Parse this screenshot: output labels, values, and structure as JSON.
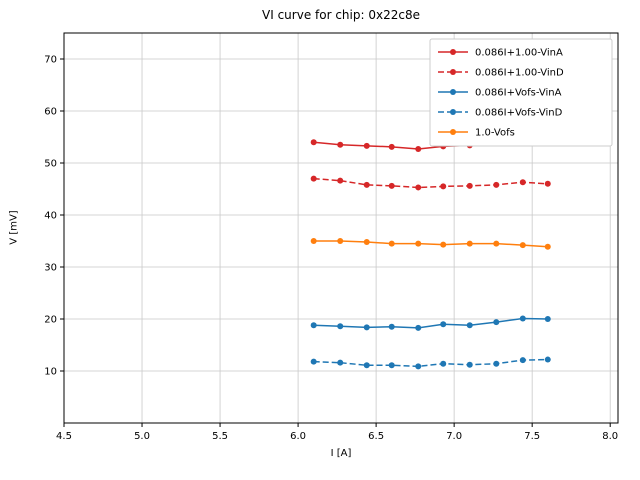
{
  "chart_data": {
    "type": "line",
    "title": "VI curve for chip: 0x22c8e",
    "xlabel": "I [A]",
    "ylabel": "V [mV]",
    "xlim": [
      4.5,
      8.05
    ],
    "ylim": [
      0,
      75
    ],
    "xticks": [
      4.5,
      5.0,
      5.5,
      6.0,
      6.5,
      7.0,
      7.5,
      8.0
    ],
    "yticks": [
      10,
      20,
      30,
      40,
      50,
      60,
      70
    ],
    "grid": true,
    "legend_position": "upper right",
    "x": [
      6.1,
      6.27,
      6.44,
      6.6,
      6.77,
      6.93,
      7.1,
      7.27,
      7.44,
      7.6
    ],
    "series": [
      {
        "name": "0.086I+1.00-VinA",
        "color": "#d62728",
        "style": "solid",
        "values": [
          54.0,
          53.5,
          53.3,
          53.1,
          52.7,
          53.2,
          53.4,
          53.8,
          54.3,
          53.8
        ]
      },
      {
        "name": "0.086I+1.00-VinD",
        "color": "#d62728",
        "style": "dashed",
        "values": [
          47.0,
          46.6,
          45.8,
          45.6,
          45.3,
          45.5,
          45.6,
          45.8,
          46.3,
          46.0
        ]
      },
      {
        "name": "0.086I+Vofs-VinA",
        "color": "#1f77b4",
        "style": "solid",
        "values": [
          18.8,
          18.6,
          18.4,
          18.5,
          18.3,
          19.0,
          18.8,
          19.4,
          20.1,
          20.0
        ]
      },
      {
        "name": "0.086I+Vofs-VinD",
        "color": "#1f77b4",
        "style": "dashed",
        "values": [
          11.8,
          11.6,
          11.1,
          11.1,
          10.9,
          11.4,
          11.2,
          11.4,
          12.1,
          12.2
        ]
      },
      {
        "name": "1.0-Vofs",
        "color": "#ff7f0e",
        "style": "solid",
        "values": [
          35.0,
          35.0,
          34.8,
          34.5,
          34.5,
          34.3,
          34.5,
          34.5,
          34.2,
          33.9
        ]
      }
    ],
    "colors": {
      "red": "#d62728",
      "blue": "#1f77b4",
      "orange": "#ff7f0e",
      "grid": "#c8c8c8",
      "axes": "#000000",
      "legend_border": "#cccccc"
    }
  }
}
